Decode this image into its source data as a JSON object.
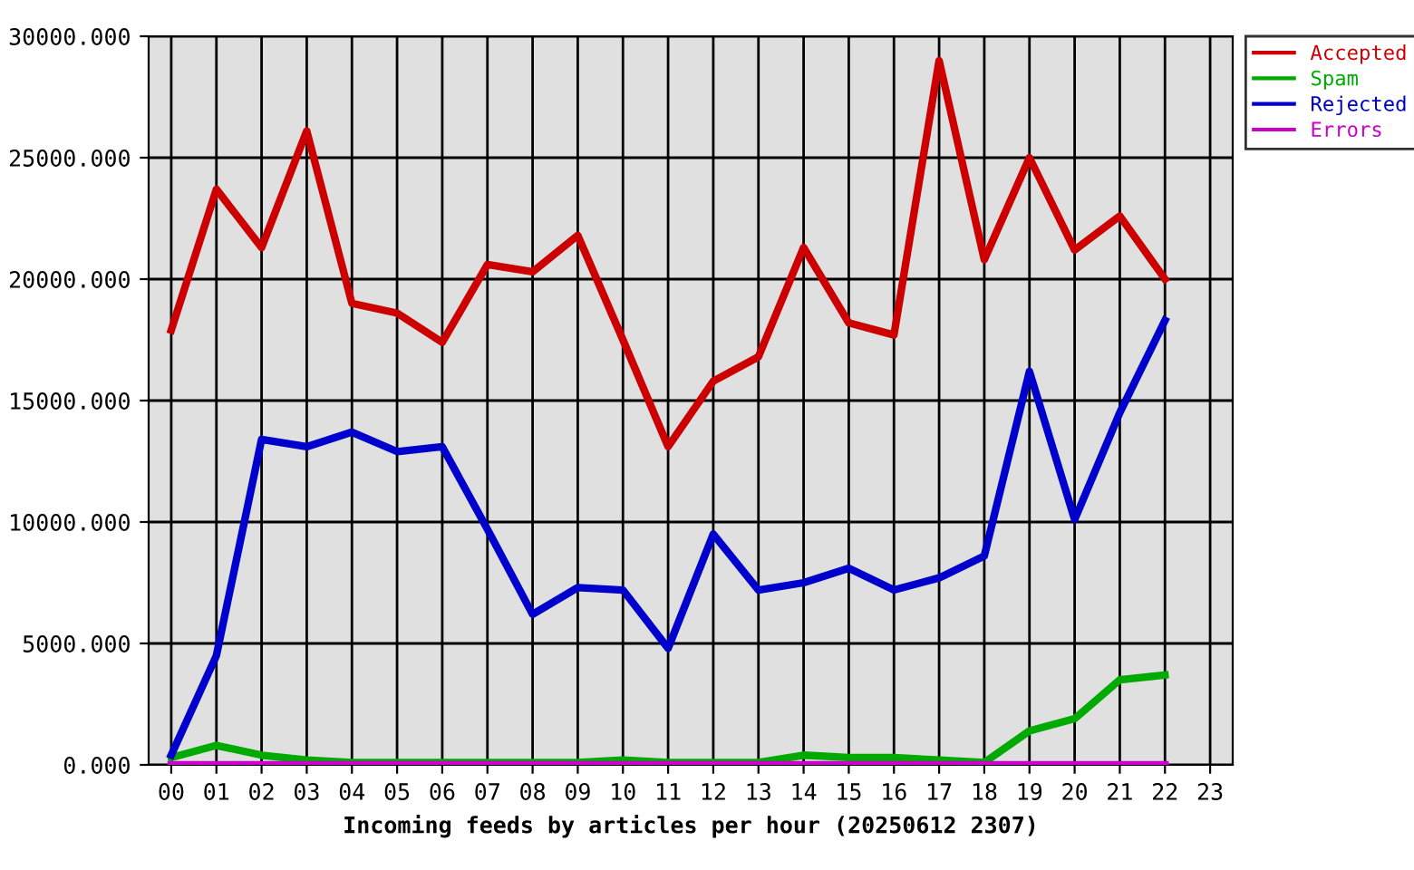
{
  "chart_data": {
    "type": "line",
    "xlabel": "Incoming feeds by articles per hour (20250612 2307)",
    "categories": [
      "00",
      "01",
      "02",
      "03",
      "04",
      "05",
      "06",
      "07",
      "08",
      "09",
      "10",
      "11",
      "12",
      "13",
      "14",
      "15",
      "16",
      "17",
      "18",
      "19",
      "20",
      "21",
      "22",
      "23"
    ],
    "series": [
      {
        "name": "Accepted",
        "color": "#cc0000",
        "values": [
          17900,
          23700,
          21300,
          26100,
          19000,
          18600,
          17400,
          20600,
          20300,
          21800,
          17500,
          13100,
          15800,
          16800,
          21300,
          18200,
          17700,
          29000,
          20800,
          25000,
          21200,
          22600,
          20000,
          null
        ]
      },
      {
        "name": "Spam",
        "color": "#00aa00",
        "values": [
          300,
          800,
          400,
          200,
          100,
          100,
          100,
          100,
          100,
          100,
          200,
          100,
          100,
          100,
          400,
          300,
          300,
          200,
          100,
          1400,
          1900,
          3500,
          3700,
          null
        ]
      },
      {
        "name": "Rejected",
        "color": "#0000cc",
        "values": [
          400,
          4500,
          13400,
          13100,
          13700,
          12900,
          13100,
          9700,
          6200,
          7300,
          7200,
          4800,
          9500,
          7200,
          7500,
          8100,
          7200,
          7700,
          8600,
          16200,
          10100,
          14500,
          18300,
          null
        ]
      },
      {
        "name": "Errors",
        "color": "#cc00cc",
        "values": [
          0,
          0,
          0,
          0,
          0,
          0,
          0,
          0,
          0,
          0,
          0,
          0,
          0,
          0,
          0,
          0,
          0,
          0,
          0,
          0,
          0,
          0,
          0,
          null
        ]
      }
    ],
    "ylim": [
      0,
      30000
    ],
    "yticks": [
      {
        "value": 0,
        "label": "0.000"
      },
      {
        "value": 5000,
        "label": "5000.000"
      },
      {
        "value": 10000,
        "label": "10000.000"
      },
      {
        "value": 15000,
        "label": "15000.000"
      },
      {
        "value": 20000,
        "label": "20000.000"
      },
      {
        "value": 25000,
        "label": "25000.000"
      },
      {
        "value": 30000,
        "label": "30000.000"
      }
    ],
    "grid": true,
    "legend": "top right"
  }
}
